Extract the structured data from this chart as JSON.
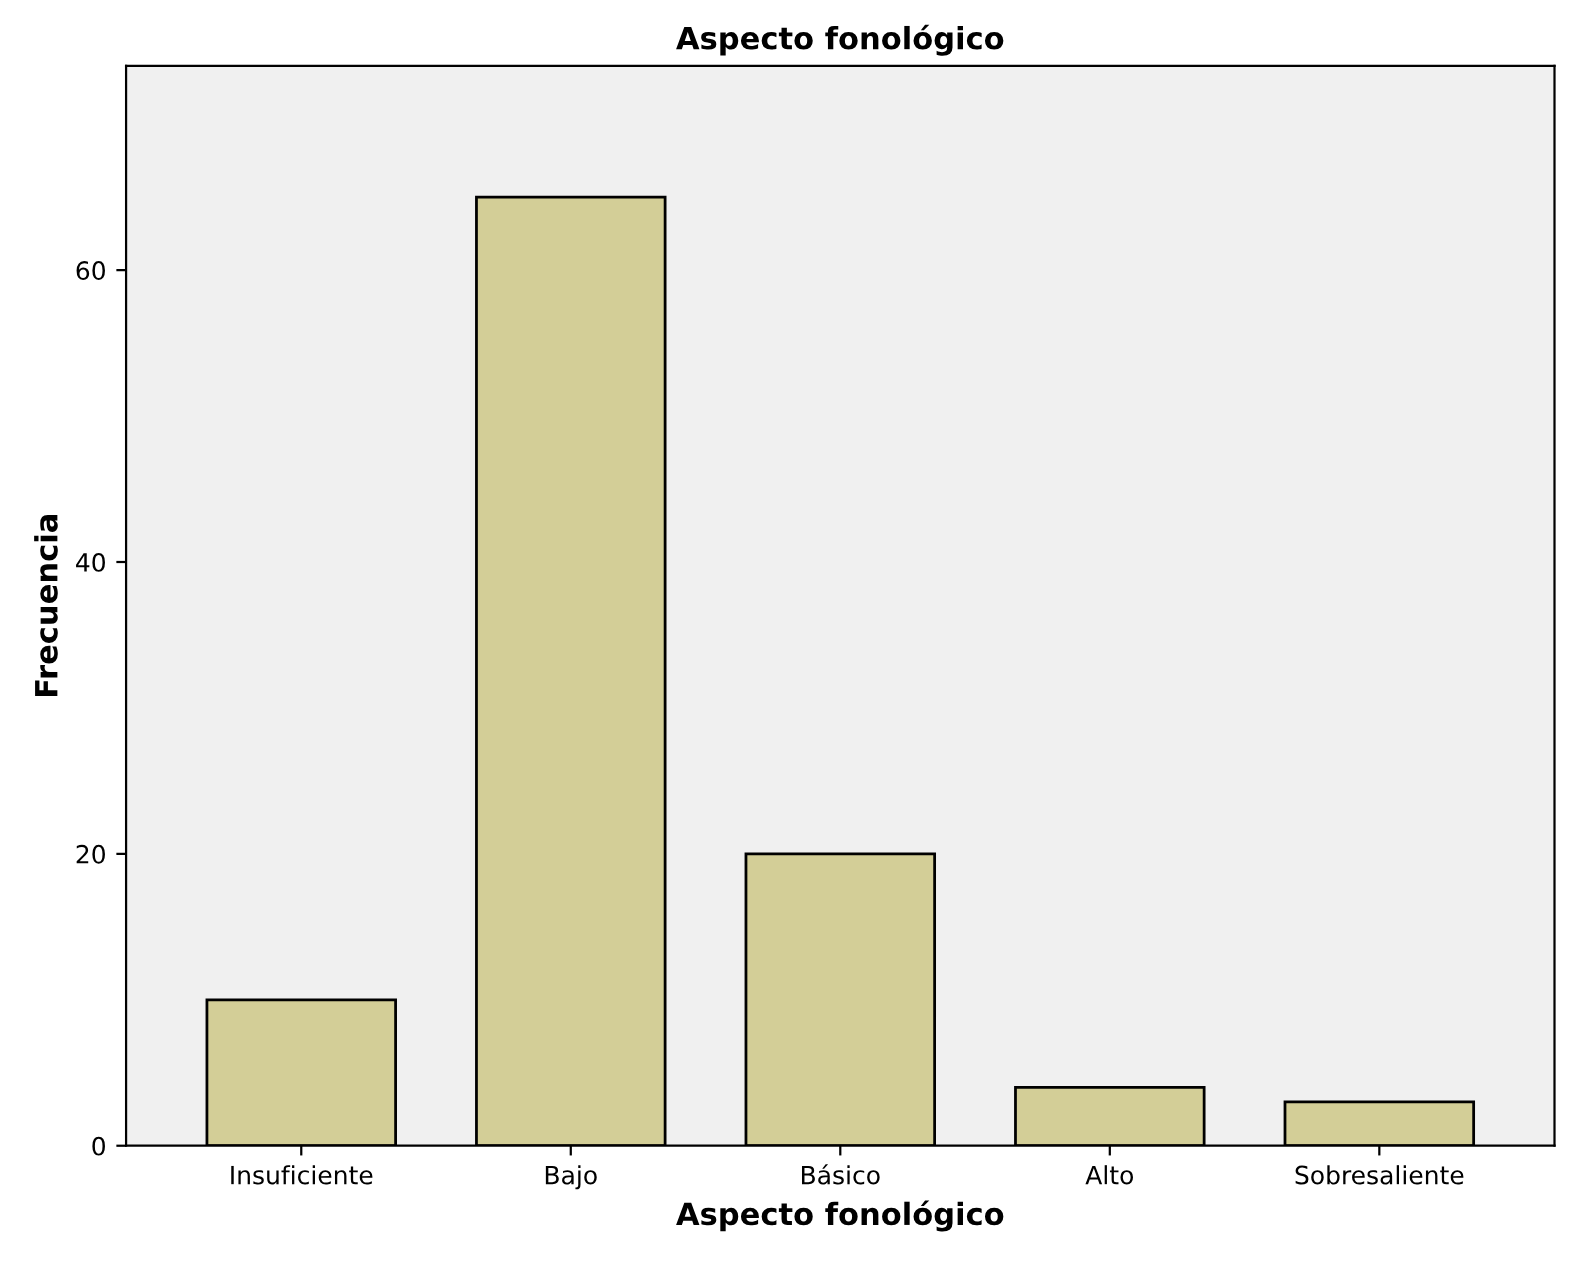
{
  "chart_data": {
    "type": "bar",
    "title": "Aspecto fonológico",
    "xlabel": "Aspecto fonológico",
    "ylabel": "Frecuencia",
    "categories": [
      "Insuficiente",
      "Bajo",
      "Básico",
      "Alto",
      "Sobresaliente"
    ],
    "values": [
      10,
      65,
      20,
      4,
      3
    ],
    "color": "#d3ce97",
    "ylim": [
      0,
      74
    ],
    "yticks": [
      0,
      20,
      40,
      60
    ],
    "grid": false
  }
}
